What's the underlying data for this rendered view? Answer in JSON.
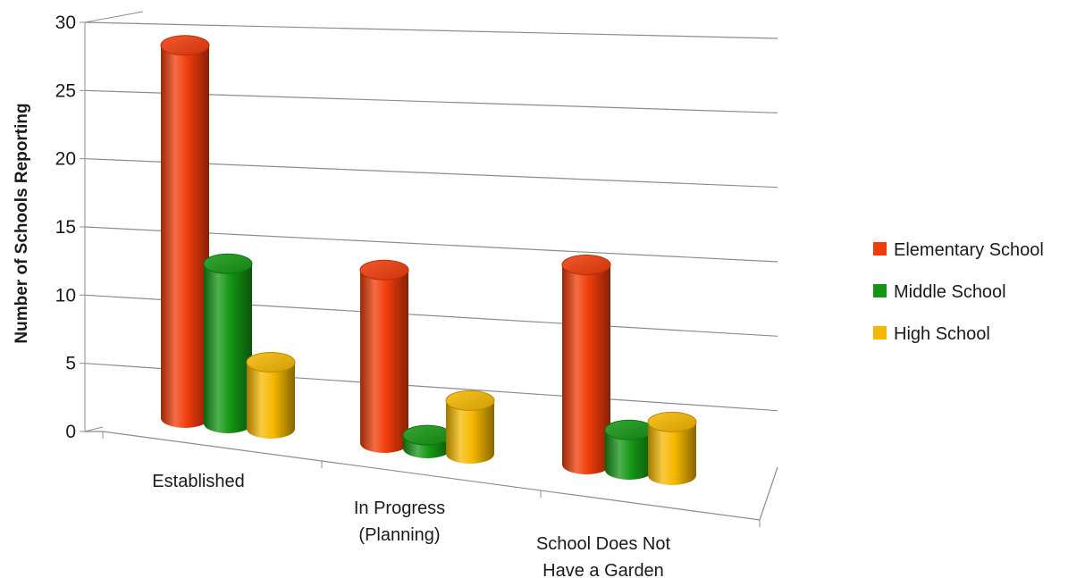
{
  "chart_data": {
    "type": "bar",
    "style": "3d-cylinder",
    "ylabel": "Number of Schools Reporting",
    "xlabel": "",
    "ylim": [
      0,
      30
    ],
    "yticks": [
      0,
      5,
      10,
      15,
      20,
      25,
      30
    ],
    "grid": true,
    "legend_position": "right",
    "categories": [
      [
        "Established"
      ],
      [
        "In Progress",
        "(Planning)"
      ],
      [
        "School Does Not",
        "Have a Garden"
      ]
    ],
    "series": [
      {
        "name": "Elementary School",
        "color": "#f03c0a",
        "values": [
          28,
          13,
          15
        ]
      },
      {
        "name": "Middle School",
        "color": "#149614",
        "values": [
          12,
          1,
          3
        ]
      },
      {
        "name": "High School",
        "color": "#f5b800",
        "values": [
          5,
          4,
          4
        ]
      }
    ]
  }
}
